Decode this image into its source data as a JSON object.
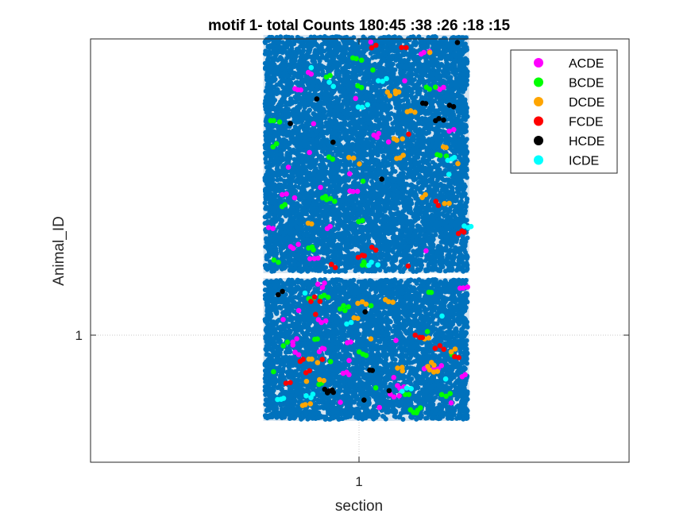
{
  "chart_data": {
    "type": "scatter",
    "title": "motif 1- total Counts 180:45 :38 :26 :18 :15",
    "xlabel": "section",
    "ylabel": "Animal_ID",
    "xticks": [
      "1"
    ],
    "yticks": [
      "1"
    ],
    "grid": true,
    "legend_location": "top-right",
    "background_series": {
      "color": "#0072BD",
      "bands": [
        {
          "x_range": [
            0.67,
            1.38
          ],
          "y_range": [
            1.13,
            1.63
          ]
        },
        {
          "x_range": [
            0.67,
            1.38
          ],
          "y_range": [
            0.82,
            1.12
          ]
        }
      ]
    },
    "series": [
      {
        "name": "ACDE",
        "color": "#FF00FF",
        "count": 45
      },
      {
        "name": "BCDE",
        "color": "#00FF00",
        "count": 38
      },
      {
        "name": "DCDE",
        "color": "#FFA500",
        "count": 26
      },
      {
        "name": "FCDE",
        "color": "#FF0000",
        "count": 18
      },
      {
        "name": "HCDE",
        "color": "#000000",
        "count": 15
      },
      {
        "name": "ICDE",
        "color": "#00FFFF",
        "count": 15
      }
    ]
  }
}
